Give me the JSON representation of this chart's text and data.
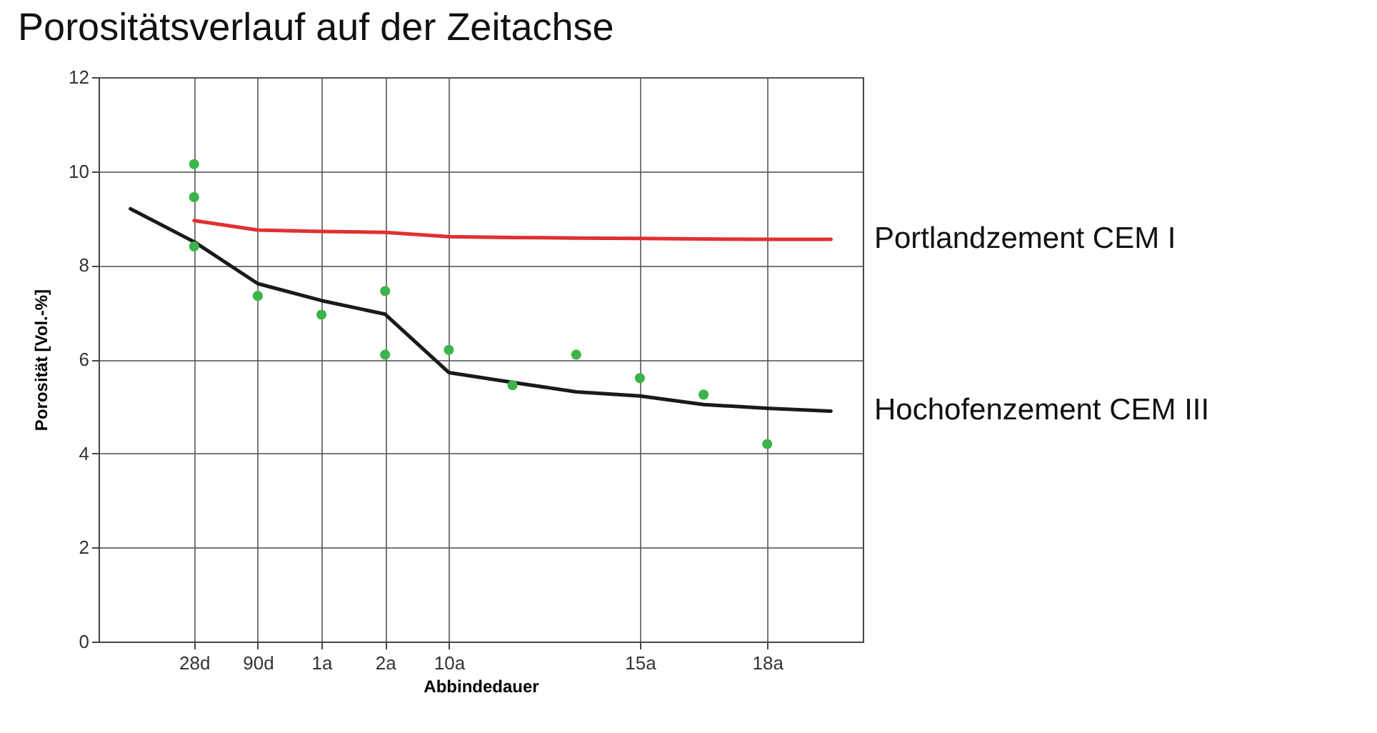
{
  "chart_data": {
    "type": "line",
    "title": "Porositätsverlauf auf der Zeitachse",
    "xlabel": "Abbindedauer",
    "ylabel": "Porosität [Vol.-%]",
    "categories": [
      null,
      "28d",
      "90d",
      "1a",
      "2a",
      "10a",
      null,
      null,
      "15a",
      null,
      "18a",
      null
    ],
    "ylim": [
      0,
      12
    ],
    "yticks": [
      0,
      2,
      4,
      6,
      8,
      10,
      12
    ],
    "grid": true,
    "legend": false,
    "series": [
      {
        "name": "Portlandzement CEM I",
        "color": "#e03030",
        "values": [
          null,
          8.95,
          8.75,
          8.72,
          8.7,
          8.61,
          8.59,
          8.58,
          8.57,
          8.56,
          8.55,
          8.55
        ]
      },
      {
        "name": "Hochofenzement CEM III",
        "color": "#1a1a1a",
        "values": [
          9.2,
          8.5,
          7.61,
          7.25,
          6.96,
          5.72,
          5.51,
          5.31,
          5.22,
          5.04,
          4.96,
          4.9
        ]
      },
      {
        "type": "scatter",
        "color": "#3cb44b",
        "values": [
          null,
          10.15,
          7.35,
          6.95,
          7.45,
          6.2,
          5.45,
          6.1,
          5.6,
          5.25,
          4.2,
          null
        ]
      },
      {
        "type": "scatter",
        "color": "#3cb44b",
        "values": [
          null,
          9.45,
          null,
          null,
          6.1,
          null,
          null,
          null,
          null,
          null,
          null,
          null
        ]
      },
      {
        "type": "scatter",
        "color": "#3cb44b",
        "values": [
          null,
          8.4,
          null,
          null,
          null,
          null,
          null,
          null,
          null,
          null,
          null,
          null
        ]
      }
    ]
  }
}
